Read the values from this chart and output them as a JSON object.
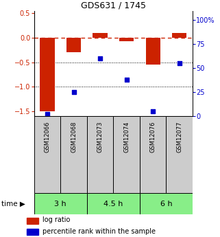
{
  "title": "GDS631 / 1745",
  "samples": [
    "GSM12066",
    "GSM12068",
    "GSM12073",
    "GSM12074",
    "GSM12076",
    "GSM12077"
  ],
  "log_ratio": [
    -1.5,
    -0.3,
    0.1,
    -0.07,
    -0.55,
    0.1
  ],
  "percentile": [
    2,
    25,
    60,
    38,
    5,
    55
  ],
  "time_groups": [
    {
      "label": "3 h",
      "start": 0,
      "end": 2
    },
    {
      "label": "4.5 h",
      "start": 2,
      "end": 4
    },
    {
      "label": "6 h",
      "start": 4,
      "end": 6
    }
  ],
  "ylim_left": [
    -1.6,
    0.55
  ],
  "ylim_right": [
    0,
    110
  ],
  "yticks_left": [
    0.5,
    0,
    -0.5,
    -1.0,
    -1.5
  ],
  "yticks_right": [
    100,
    75,
    50,
    25,
    0
  ],
  "bar_color": "#cc2200",
  "dot_color": "#0000cc",
  "dashed_color": "#cc2200",
  "time_bg_color": "#88ee88",
  "sample_bg_color": "#cccccc",
  "legend_bar_label": "log ratio",
  "legend_dot_label": "percentile rank within the sample",
  "title_fontsize": 9,
  "tick_fontsize": 7,
  "sample_fontsize": 6,
  "time_fontsize": 8,
  "legend_fontsize": 7
}
